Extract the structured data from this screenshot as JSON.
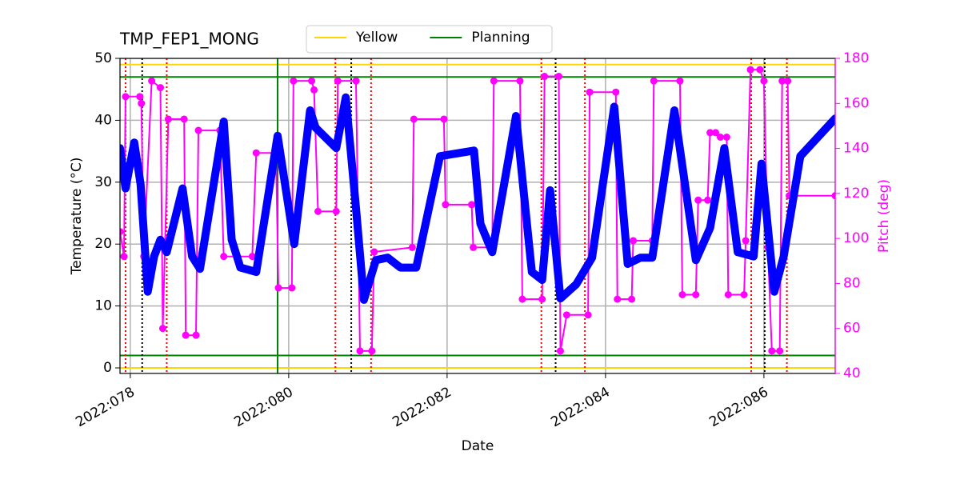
{
  "chart_data": {
    "type": "line",
    "title": "TMP_FEP1_MONG",
    "xlabel": "Date",
    "ylabel": "Temperature (°C)",
    "y2label": "Pitch (deg)",
    "xlim": [
      77.87,
      86.9
    ],
    "ylim": [
      -0.9,
      50
    ],
    "y2lim": [
      40,
      180
    ],
    "xticks": [
      {
        "value": 78,
        "label": "2022:078"
      },
      {
        "value": 80,
        "label": "2022:080"
      },
      {
        "value": 82,
        "label": "2022:082"
      },
      {
        "value": 84,
        "label": "2022:084"
      },
      {
        "value": 86,
        "label": "2022:086"
      }
    ],
    "yticks": [
      0,
      10,
      20,
      30,
      40,
      50
    ],
    "y2ticks": [
      40,
      60,
      80,
      100,
      120,
      140,
      160,
      180
    ],
    "grid": true,
    "series": [
      {
        "name": "Temperature",
        "color": "blue",
        "x": [
          77.87,
          77.94,
          78.05,
          78.13,
          78.22,
          78.3,
          78.38,
          78.46,
          78.66,
          78.78,
          78.88,
          79.18,
          79.28,
          79.39,
          79.59,
          79.86,
          80.07,
          80.27,
          80.34,
          80.6,
          80.72,
          80.85,
          80.95,
          81.1,
          81.25,
          81.41,
          81.61,
          81.91,
          82.34,
          82.42,
          82.57,
          82.87,
          83.07,
          83.2,
          83.3,
          83.43,
          83.63,
          83.83,
          84.11,
          84.28,
          84.44,
          84.59,
          84.87,
          85.14,
          85.32,
          85.5,
          85.67,
          85.87,
          85.97,
          86.13,
          86.25,
          86.46,
          86.9
        ],
        "values": [
          35.5,
          29.0,
          36.4,
          29.7,
          12.3,
          18.0,
          20.7,
          18.7,
          29.0,
          18.0,
          16.0,
          39.8,
          20.7,
          16.2,
          15.5,
          37.5,
          20.0,
          41.6,
          38.8,
          35.5,
          43.7,
          25.8,
          11.0,
          17.4,
          17.8,
          16.2,
          16.2,
          34.2,
          35.1,
          23.3,
          18.7,
          40.7,
          15.5,
          14.2,
          28.7,
          11.2,
          13.5,
          17.8,
          42.2,
          16.8,
          17.8,
          17.8,
          41.6,
          17.4,
          22.6,
          35.5,
          18.7,
          18.0,
          33.0,
          12.3,
          18.0,
          34.2,
          40.3
        ]
      },
      {
        "name": "Pitch",
        "color": "magenta",
        "axis": "y2",
        "x": [
          77.87,
          77.92,
          77.94,
          78.12,
          78.14,
          78.17,
          78.27,
          78.38,
          78.41,
          78.48,
          78.68,
          78.7,
          78.83,
          78.86,
          79.13,
          79.18,
          79.54,
          79.59,
          79.84,
          79.87,
          80.04,
          80.06,
          80.29,
          80.32,
          80.37,
          80.6,
          80.62,
          80.85,
          80.9,
          81.05,
          81.08,
          81.56,
          81.58,
          81.96,
          81.98,
          82.31,
          82.33,
          82.57,
          82.59,
          82.92,
          82.95,
          83.2,
          83.23,
          83.41,
          83.43,
          83.51,
          83.78,
          83.8,
          84.13,
          84.15,
          84.33,
          84.35,
          84.59,
          84.61,
          84.94,
          84.97,
          85.14,
          85.17,
          85.29,
          85.32,
          85.39,
          85.45,
          85.53,
          85.55,
          85.75,
          85.77,
          85.83,
          85.95,
          86.0,
          86.05,
          86.1,
          86.2,
          86.23,
          86.3,
          86.32,
          86.9
        ],
        "values": [
          103,
          92,
          163,
          163,
          160,
          92,
          170,
          167,
          60,
          153,
          153,
          57,
          57,
          148,
          148,
          92,
          92,
          138,
          138,
          78,
          78,
          170,
          170,
          166,
          112,
          112,
          170,
          170,
          50,
          50,
          94,
          96,
          153,
          153,
          115,
          115,
          96,
          96,
          170,
          170,
          73,
          73,
          172,
          172,
          50,
          66,
          66,
          165,
          165,
          73,
          73,
          99,
          99,
          170,
          170,
          75,
          75,
          117,
          117,
          147,
          147,
          145,
          145,
          75,
          75,
          99,
          175,
          175,
          170,
          96,
          50,
          50,
          170,
          170,
          119,
          119
        ]
      }
    ],
    "hlines": [
      {
        "name": "Yellow",
        "color": "#ffd700",
        "values": [
          49,
          0
        ]
      },
      {
        "name": "Planning",
        "color": "green",
        "values": [
          47,
          2
        ]
      }
    ],
    "vlines": [
      {
        "color": "red",
        "style": "dotted",
        "x": [
          77.94,
          78.46,
          80.59,
          81.04,
          83.19,
          83.74,
          85.84,
          86.29
        ]
      },
      {
        "color": "black",
        "style": "dotted",
        "x": [
          78.15,
          80.79,
          83.37,
          86.01
        ]
      },
      {
        "color": "green",
        "style": "solid",
        "x": [
          79.86
        ]
      }
    ]
  }
}
